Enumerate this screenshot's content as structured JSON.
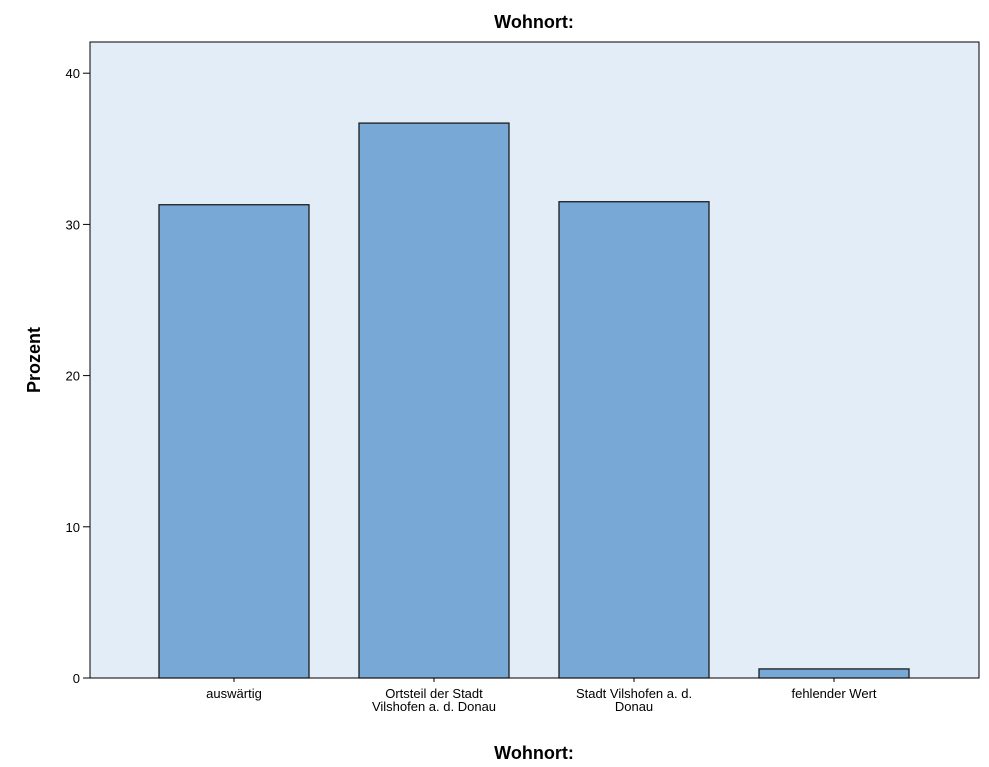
{
  "chart_data": {
    "type": "bar",
    "title": "Wohnort:",
    "xlabel": "Wohnort:",
    "ylabel": "Prozent",
    "categories": [
      [
        "auswärtig"
      ],
      [
        "Ortsteil der Stadt",
        "Vilshofen a. d. Donau"
      ],
      [
        "Stadt Vilshofen a. d.",
        "Donau"
      ],
      [
        "fehlender Wert"
      ]
    ],
    "values": [
      31.3,
      36.7,
      31.5,
      0.6
    ],
    "ylim": [
      0,
      42
    ],
    "yticks": [
      0,
      10,
      20,
      30,
      40
    ],
    "grid": false,
    "legend": "none",
    "colors": {
      "plot_background": "#e3edf8",
      "bar_fill": "#78a8d6",
      "bar_stroke": "#1c1c1c",
      "axis": "#000000"
    }
  }
}
